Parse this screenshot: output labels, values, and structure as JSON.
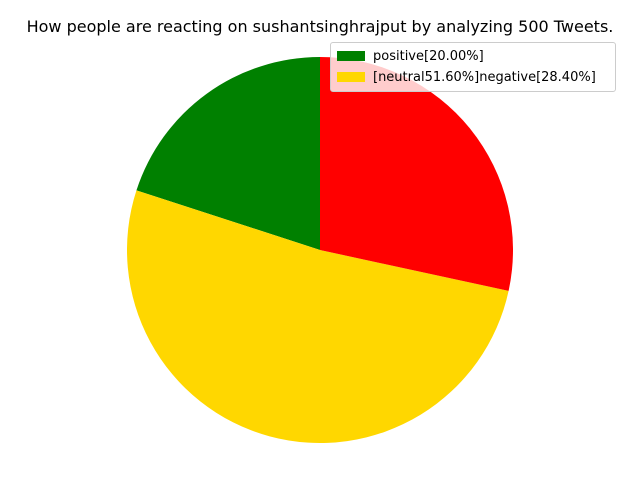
{
  "chart_data": {
    "type": "pie",
    "title": "How people are reacting on sushantsinghrajput by analyzing 500 Tweets.",
    "slices": [
      {
        "value": 20.0,
        "color": "#008000"
      },
      {
        "value": 51.6,
        "color": "#FFD700"
      },
      {
        "value": 28.4,
        "color": "#FF0000"
      }
    ],
    "start_angle_deg": 90,
    "direction": "counterclockwise",
    "legend": {
      "placement": "top-right",
      "entries": [
        {
          "label": "positive[20.00%]",
          "color": "#008000"
        },
        {
          "label": "[neutral51.60%]negative[28.40%]",
          "color": "#FFD700"
        }
      ]
    }
  }
}
